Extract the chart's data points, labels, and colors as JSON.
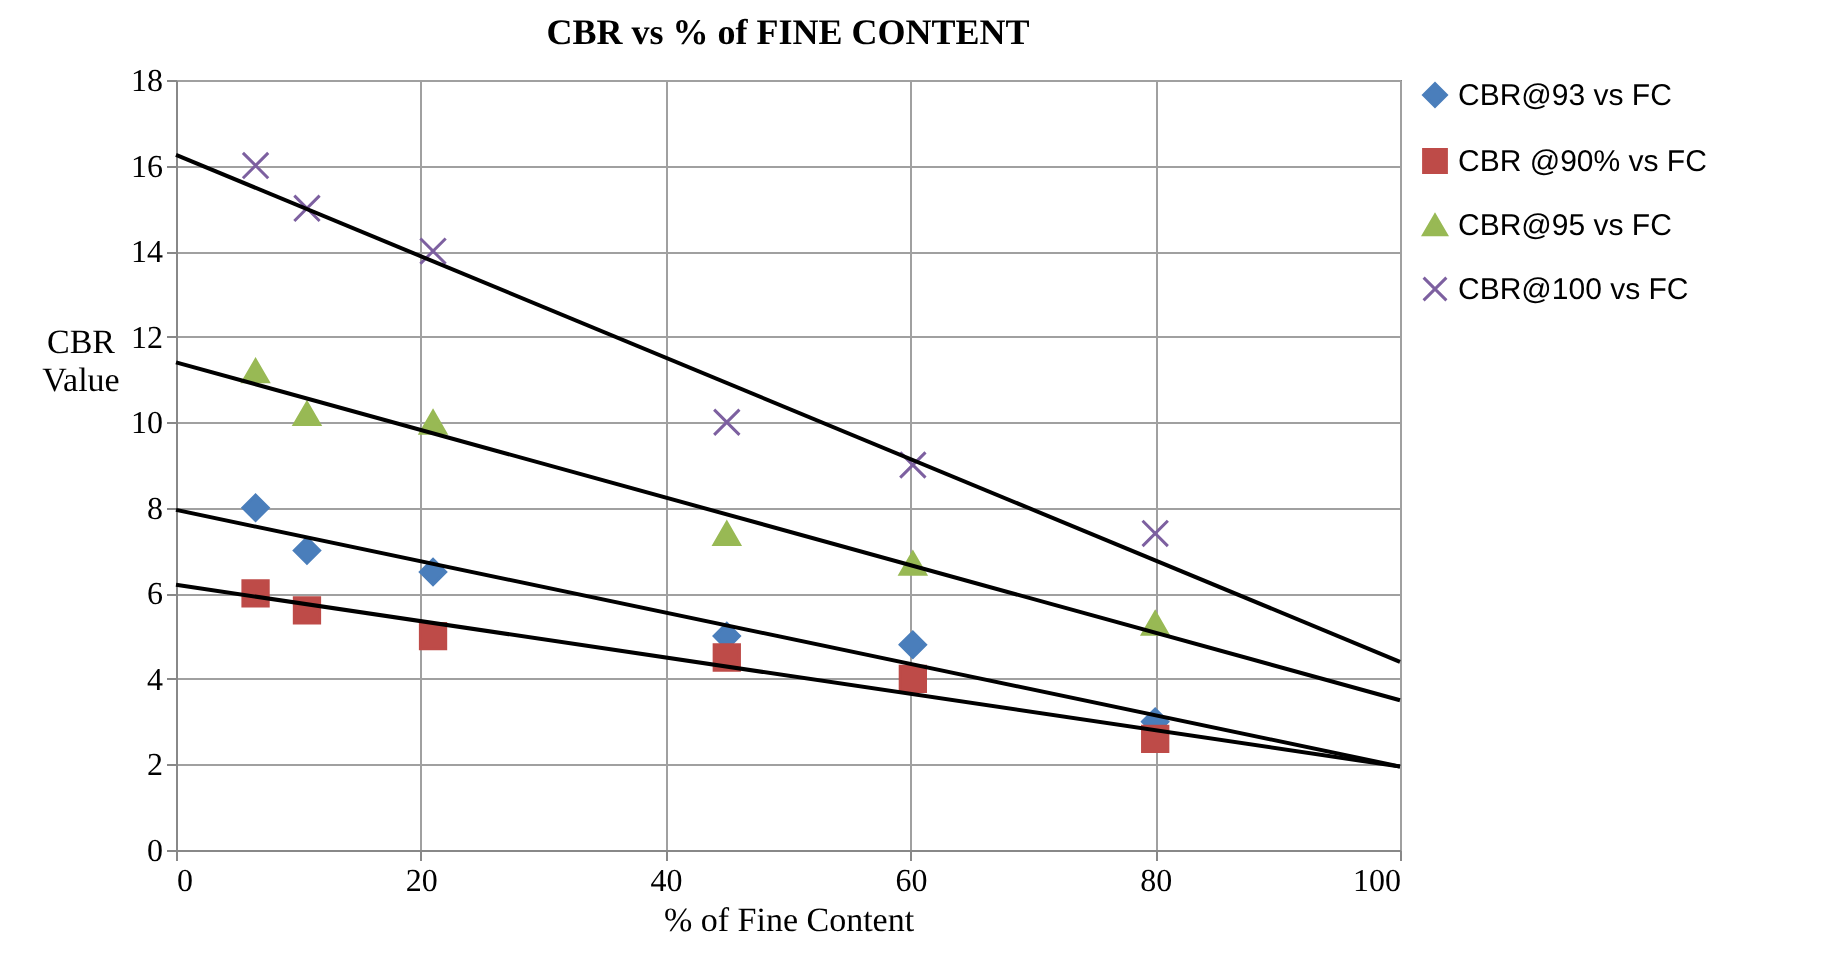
{
  "chart_data": {
    "type": "scatter",
    "title": "CBR vs % of FINE CONTENT",
    "xlabel": "% of Fine Content",
    "ylabel": "CBR Value",
    "xlim": [
      0,
      100
    ],
    "xticks": [
      0,
      20,
      40,
      60,
      80,
      100
    ],
    "ylim": [
      0,
      18
    ],
    "yticks": [
      0,
      2,
      4,
      6,
      8,
      10,
      12,
      14,
      16,
      18
    ],
    "grid": true,
    "legend": "right",
    "series": [
      {
        "name": "CBR@93 vs FC",
        "color": "#4a7ebb",
        "marker": "diamond",
        "x": [
          6.5,
          10.7,
          21,
          45,
          60.2,
          80
        ],
        "values": [
          8,
          7,
          6.5,
          5,
          4.8,
          3
        ]
      },
      {
        "name": "CBR @90% vs FC",
        "color": "#be4b48",
        "marker": "square",
        "x": [
          6.5,
          10.7,
          21,
          45,
          60.2,
          80
        ],
        "values": [
          6,
          5.6,
          5,
          4.5,
          4,
          2.6
        ]
      },
      {
        "name": "CBR@95 vs FC",
        "color": "#98b954",
        "marker": "triangle",
        "x": [
          6.5,
          10.7,
          21,
          45,
          60.2,
          80
        ],
        "values": [
          11.2,
          10.2,
          10,
          7.4,
          6.7,
          5.3
        ]
      },
      {
        "name": "CBR@100 vs FC",
        "color": "#7d60a0",
        "marker": "cross",
        "x": [
          6.5,
          10.7,
          21,
          45,
          60.2,
          80
        ],
        "values": [
          16,
          15,
          14,
          10,
          9,
          7.4
        ]
      },
      {
        "type": "line",
        "color": "#000000",
        "x": [
          0,
          100
        ],
        "values": [
          7.95,
          1.95
        ]
      },
      {
        "type": "line",
        "color": "#000000",
        "x": [
          0,
          100
        ],
        "values": [
          6.2,
          1.95
        ]
      },
      {
        "type": "line",
        "color": "#000000",
        "x": [
          0,
          100
        ],
        "values": [
          11.4,
          3.5
        ]
      },
      {
        "type": "line",
        "color": "#000000",
        "x": [
          0,
          100
        ],
        "values": [
          16.25,
          4.4
        ]
      }
    ]
  }
}
